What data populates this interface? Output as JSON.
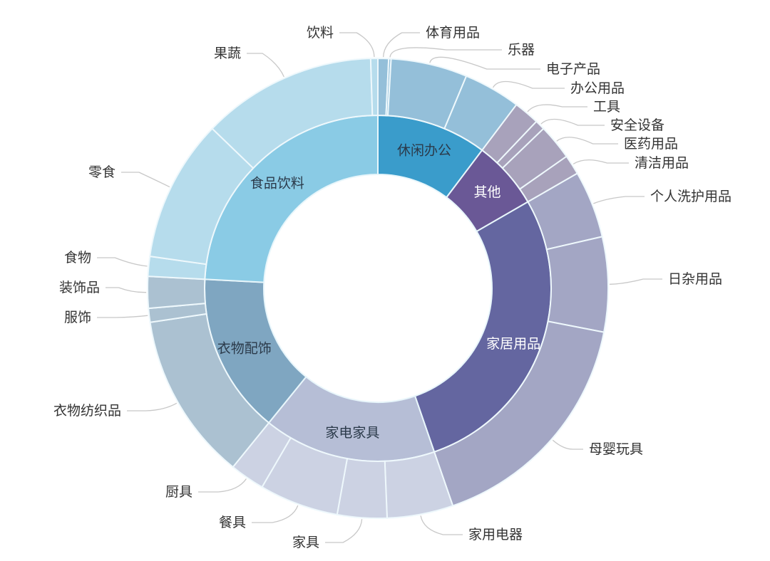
{
  "chart_data": {
    "type": "sunburst",
    "title": "",
    "inner": [
      {
        "name": "休闲办公",
        "start": 0,
        "end": 37,
        "color": "#3a9ccb",
        "outer_color": "#94bfd9",
        "text_color": "#2b3a4a"
      },
      {
        "name": "其他",
        "start": 37,
        "end": 60,
        "color": "#6a5896",
        "outer_color": "#a8a2bb",
        "text_color": "#ffffff"
      },
      {
        "name": "家居用品",
        "start": 60,
        "end": 161,
        "color": "#6466a0",
        "outer_color": "#a3a6c4",
        "text_color": "#ffffff"
      },
      {
        "name": "家电家具",
        "start": 161,
        "end": 219,
        "color": "#b6bed6",
        "outer_color": "#ccd2e3",
        "text_color": "#2b3a4a"
      },
      {
        "name": "衣物配饰",
        "start": 219,
        "end": 273,
        "color": "#7fa6c1",
        "outer_color": "#abc1d1",
        "text_color": "#2b3a4a"
      },
      {
        "name": "食品饮料",
        "start": 273,
        "end": 360,
        "color": "#8acbe5",
        "outer_color": "#b6dcec",
        "text_color": "#2b3a4a"
      }
    ],
    "outer": [
      {
        "name": "体育用品",
        "parent": "休闲办公",
        "start": 0,
        "end": 2.7
      },
      {
        "name": "乐器",
        "parent": "休闲办公",
        "start": 2.7,
        "end": 3.3
      },
      {
        "name": "电子产品",
        "parent": "休闲办公",
        "start": 3.3,
        "end": 22.6
      },
      {
        "name": "办公用品",
        "parent": "休闲办公",
        "start": 22.6,
        "end": 37
      },
      {
        "name": "工具",
        "parent": "其他",
        "start": 37,
        "end": 43.5
      },
      {
        "name": "安全设备",
        "parent": "其他",
        "start": 43.5,
        "end": 46
      },
      {
        "name": "医药用品",
        "parent": "其他",
        "start": 46,
        "end": 55
      },
      {
        "name": "清洁用品",
        "parent": "其他",
        "start": 55,
        "end": 60
      },
      {
        "name": "个人洗护用品",
        "parent": "家居用品",
        "start": 60,
        "end": 77
      },
      {
        "name": "日杂用品",
        "parent": "家居用品",
        "start": 77,
        "end": 101
      },
      {
        "name": "母婴玩具",
        "parent": "家居用品",
        "start": 101,
        "end": 161
      },
      {
        "name": "家用电器",
        "parent": "家电家具",
        "start": 161,
        "end": 177.7
      },
      {
        "name": "家具",
        "parent": "家电家具",
        "start": 177.7,
        "end": 190.2
      },
      {
        "name": "餐具",
        "parent": "家电家具",
        "start": 190.2,
        "end": 210.2
      },
      {
        "name": "厨具",
        "parent": "家电家具",
        "start": 210.2,
        "end": 219
      },
      {
        "name": "衣物纺织品",
        "parent": "衣物配饰",
        "start": 219,
        "end": 261.5
      },
      {
        "name": "服饰",
        "parent": "衣物配饰",
        "start": 261.5,
        "end": 265
      },
      {
        "name": "装饰品",
        "parent": "衣物配饰",
        "start": 265,
        "end": 273
      },
      {
        "name": "食物",
        "parent": "食品饮料",
        "start": 273,
        "end": 278
      },
      {
        "name": "零食",
        "parent": "食品饮料",
        "start": 278,
        "end": 314
      },
      {
        "name": "果蔬",
        "parent": "食品饮料",
        "start": 314,
        "end": 358.2
      },
      {
        "name": "饮料",
        "parent": "食品饮料",
        "start": 358.2,
        "end": 360
      }
    ],
    "angle_unit": "degrees clockwise from top",
    "legend": "none"
  }
}
